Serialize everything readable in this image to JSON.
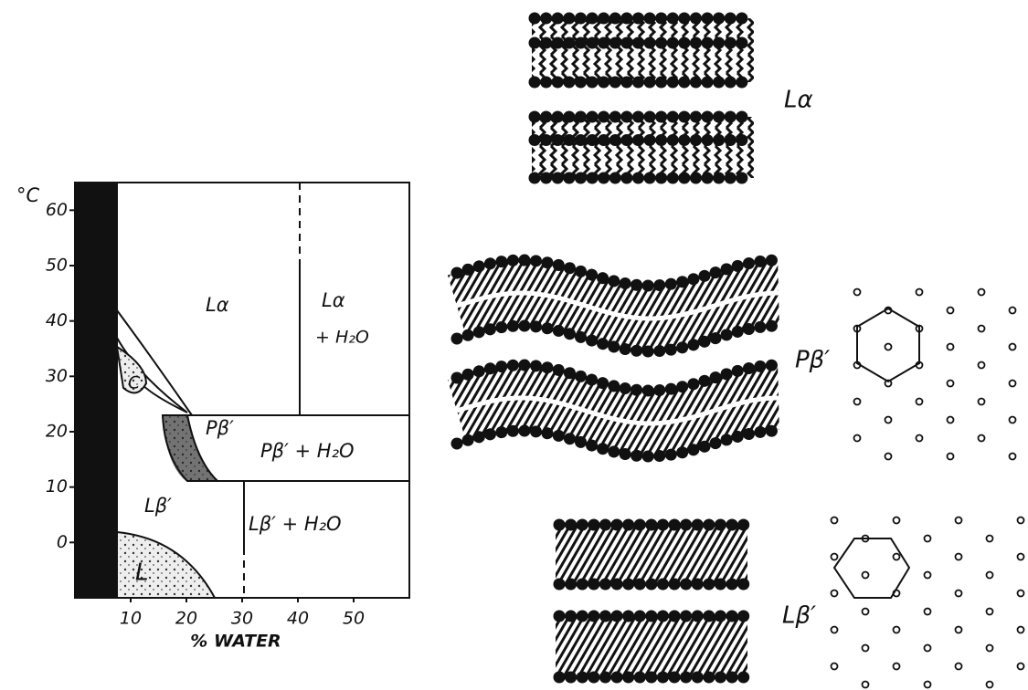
{
  "phase_diagram": {
    "y_axis_label": "°C",
    "x_axis_label": "% WATER",
    "xlim": [
      0,
      60
    ],
    "ylim": [
      -10,
      65
    ],
    "xticks": [
      10,
      20,
      30,
      40,
      50
    ],
    "yticks": [
      0,
      10,
      20,
      30,
      40,
      50,
      60
    ],
    "regions": [
      "Lα",
      "Lα",
      "+ H₂O",
      "Pβ′",
      "Pβ′ + H₂O",
      "Lβ′",
      "Lβ′ + H₂O",
      "C",
      "L"
    ]
  },
  "structures": [
    {
      "label": "Lα"
    },
    {
      "label": "Pβ′"
    },
    {
      "label": "Lβ′"
    }
  ]
}
